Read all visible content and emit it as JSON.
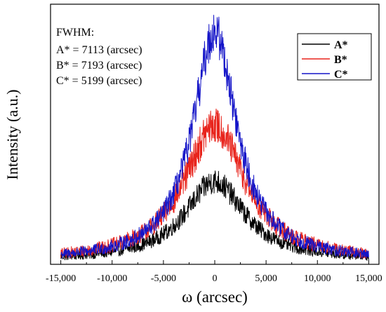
{
  "chart_data": {
    "type": "line",
    "xlabel": "ω (arcsec)",
    "ylabel": "Intensity (a.u.)",
    "xlim": [
      -16000,
      16000
    ],
    "ylim": [
      0,
      1.08
    ],
    "grid": false,
    "y_tick_labels_shown": false,
    "xticks": [
      -15000,
      -10000,
      -5000,
      0,
      5000,
      10000,
      15000
    ],
    "xtick_labels": [
      "-15,000",
      "-10,000",
      "-5,000",
      "0",
      "5,000",
      "10,000",
      "15,000"
    ],
    "legend_position": "top-right",
    "annotation": {
      "title": "FWHM:",
      "lines": [
        "A* = 7113 (arcsec)",
        "B* = 7193 (arcsec)",
        "C* = 5199 (arcsec)"
      ]
    },
    "series": [
      {
        "name": "A*",
        "color": "#000000",
        "peak": 0.33,
        "fwhm": 7113,
        "noise": 0.055
      },
      {
        "name": "B*",
        "color": "#e8241c",
        "peak": 0.56,
        "fwhm": 7193,
        "noise": 0.085
      },
      {
        "name": "C*",
        "color": "#1414c8",
        "peak": 0.95,
        "fwhm": 5199,
        "noise": 0.1
      }
    ],
    "baseline": 0.015,
    "x_range_data": [
      -15000,
      15000
    ]
  }
}
